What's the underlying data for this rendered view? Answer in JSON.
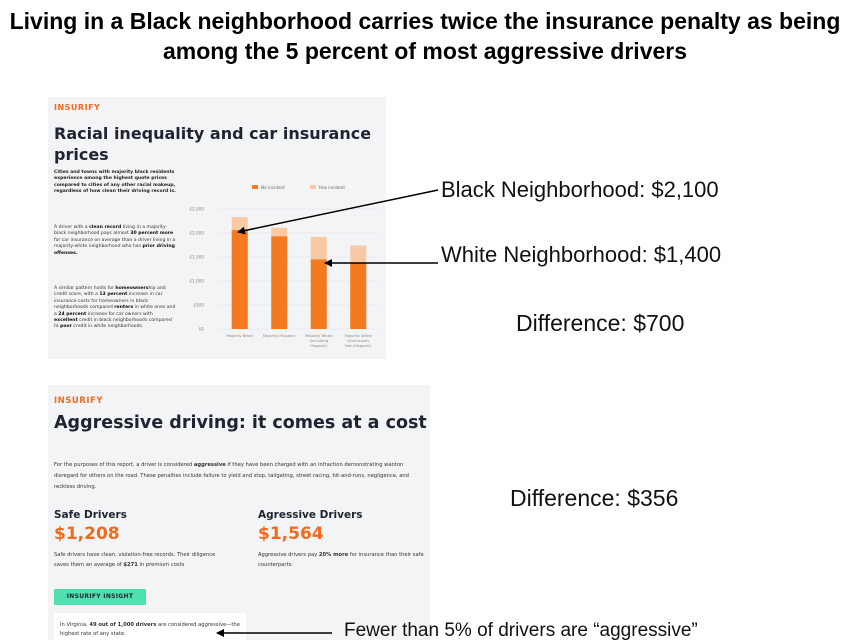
{
  "headline": "Living in a Black neighborhood carries twice the insurance penalty as being among the 5 percent of most aggressive drivers",
  "colors": {
    "accent": "#f26b1d",
    "no_incident": "#f47a20",
    "has_incident": "#f9c9a6",
    "insight": "#4fe0b0"
  },
  "panel1": {
    "logo": "INSURIFY",
    "title": "Racial inequality and car insurance prices",
    "text1": "Cities and towns with majority black residents experience among the highest quote prices compared to cities of any other racial makeup, regardless of how clean their driving record is.",
    "text2": "A driver with a clean record living in a majority-black neighborhood pays almost 30 percent more for car insurance on average than a driver living in a majority-white neighborhood who has prior driving offenses.",
    "text3": "A similar pattern holds for homeownership and credit score, with a 13 percent increase in car insurance costs for homeowners in black neighborhoods compared renters in white ones and a 24 percent increase for car owners with excellent credit in black neighborhoods compared to poor credit in white neighborhoods."
  },
  "chart_data": {
    "type": "bar",
    "categories": [
      "Majority Black",
      "Majority Hispanic",
      "Majority White (Including Hispanic)",
      "Majority White (Exclusively Non-Hispanic)"
    ],
    "series": [
      {
        "name": "No incident",
        "values": [
          2060,
          1930,
          1450,
          1370
        ]
      },
      {
        "name": "Has incident",
        "values": [
          2330,
          2110,
          1920,
          1740
        ]
      }
    ],
    "ytick_labels": [
      "$0",
      "$500",
      "$1,000",
      "$1,500",
      "$2,000",
      "$2,500"
    ],
    "ylim": [
      0,
      2500
    ],
    "legend": "top",
    "grid": true
  },
  "panel2": {
    "logo": "INSURIFY",
    "title": "Aggressive driving: it comes at a cost",
    "intro": "For the purposes of this report, a driver is considered aggressive if they have been charged with an infraction demonstrating wanton disregard for others on the road. These penalties include failure to yield and stop, tailgating, street racing, hit-and-runs, negligence, and reckless driving.",
    "safe_label": "Safe Drivers",
    "safe_amount": "$1,208",
    "safe_desc": "Safe drivers have clean, violation-free records. Their diligence saves them an average of $271 in premium costs",
    "aggr_label": "Agressive Drivers",
    "aggr_amount": "$1,564",
    "aggr_desc": "Aggressive drivers pay 20% more for insurance than their safe counterparts.",
    "insight_label": "INSURIFY INSIGHT",
    "insight_text": "In Virginia, 49 out of 1,000 drivers are considered aggressive—the highest rate of any state."
  },
  "annotations": {
    "black": "Black Neighborhood: $2,100",
    "white": "White Neighborhood: $1,400",
    "diff1": "Difference:  $700",
    "diff2": "Difference:  $356",
    "fewer": "Fewer than 5% of drivers are “aggressive”"
  }
}
